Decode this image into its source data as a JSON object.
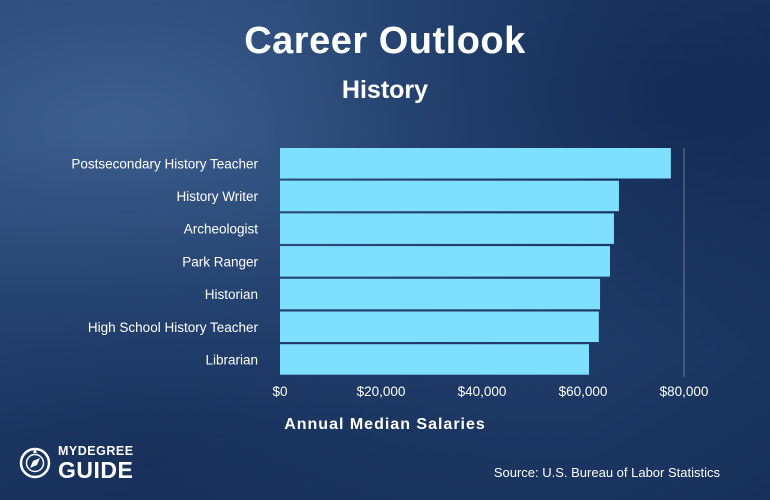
{
  "header": {
    "title": "Career Outlook",
    "subtitle": "History"
  },
  "footer": {
    "source": "Source: U.S. Bureau of Labor Statistics",
    "logo_top": "MYDEGREE",
    "logo_bottom": "GUIDE"
  },
  "colors": {
    "bar": "#7fdfff",
    "background": "#1f3c68",
    "text": "#ffffff"
  },
  "chart_data": {
    "type": "bar",
    "orientation": "horizontal",
    "title": "Career Outlook",
    "subtitle": "History",
    "xlabel": "Annual Median Salaries",
    "ylabel": "",
    "categories": [
      "Postsecondary History Teacher",
      "History Writer",
      "Archeologist",
      "Park Ranger",
      "Historian",
      "High School History Teacher",
      "Librarian"
    ],
    "values": [
      77400,
      67120,
      66130,
      65340,
      63380,
      63130,
      61190
    ],
    "xlim": [
      0,
      80000
    ],
    "xticks": [
      0,
      20000,
      40000,
      60000,
      80000
    ],
    "xtick_labels": [
      "$0",
      "$20,000",
      "$40,000",
      "$60,000",
      "$80,000"
    ],
    "grid": false
  }
}
